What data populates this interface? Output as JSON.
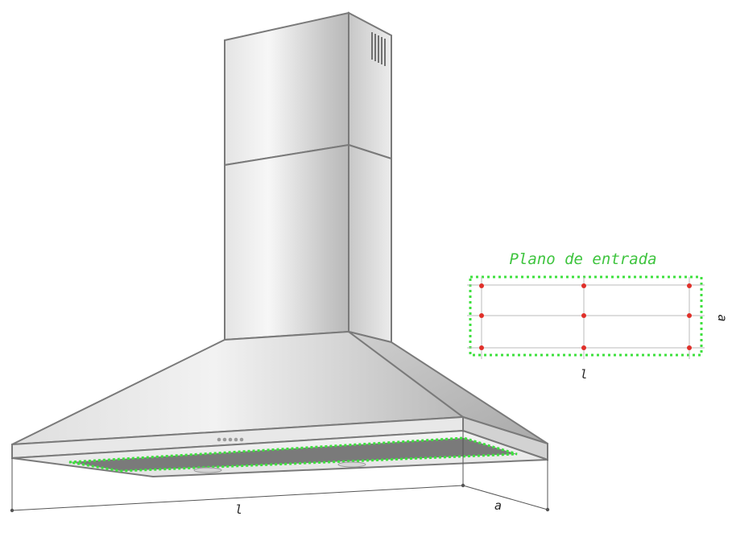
{
  "diagram": {
    "inset_title": "Plano de entrada",
    "inset_dim_length": "l",
    "inset_dim_width": "a",
    "main_dim_length": "l",
    "main_dim_width": "a",
    "measurement_grid": {
      "rows": 3,
      "columns": 3
    }
  },
  "colors": {
    "outline": "#7a7a7a",
    "steel_light": "#f1f1f1",
    "steel_mid": "#cfcfcf",
    "steel_dark": "#9a9a9a",
    "filter_gray": "#777777",
    "inlet_highlight": "#3ee03e",
    "measurement_point": "#e0302a",
    "grid_line": "#bbbbbb",
    "text_dark": "#222222"
  }
}
